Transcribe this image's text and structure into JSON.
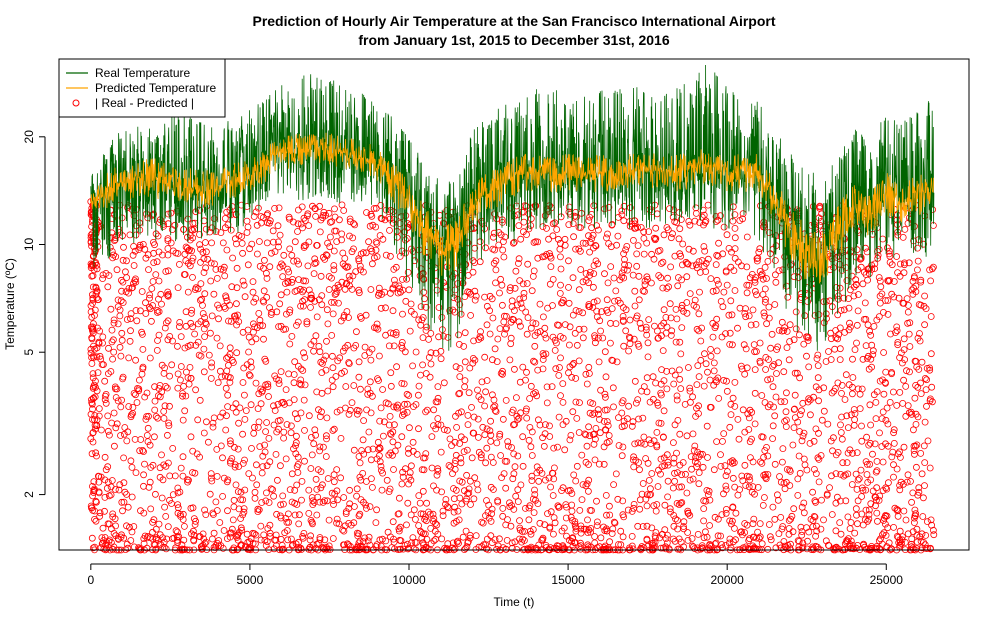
{
  "chart_data": {
    "type": "line",
    "title": "Prediction of Hourly Air Temperature at the San Francisco International Airport",
    "subtitle": "from January 1st, 2015 to December 31st, 2016",
    "xlabel": "Time (t)",
    "ylabel": "Temperature (ºC)",
    "xlim": [
      -1000,
      27600
    ],
    "ylim": [
      1.4,
      33
    ],
    "y_scale": "log",
    "x_ticks": [
      0,
      5000,
      10000,
      15000,
      20000,
      25000
    ],
    "x_tick_labels": [
      "0",
      "5000",
      "10000",
      "15000",
      "20000",
      "25000"
    ],
    "y_ticks": [
      2,
      5,
      10,
      20
    ],
    "y_tick_labels": [
      "2",
      "5",
      "10",
      "20"
    ],
    "grid": false,
    "legend_position": "top-left",
    "colors": {
      "real": "#006400",
      "predicted": "#FFA500",
      "residual": "#FF0000"
    },
    "series": [
      {
        "name": "Real Temperature",
        "style": "line",
        "x": [
          0,
          500,
          1000,
          1500,
          2000,
          2500,
          3000,
          3500,
          4000,
          4500,
          5000,
          5500,
          6000,
          6500,
          7000,
          7500,
          8000,
          8500,
          9000,
          9500,
          10000,
          10500,
          11000,
          11500,
          12000,
          12500,
          13000,
          13500,
          14000,
          14500,
          15000,
          15500,
          16000,
          16500,
          17000,
          17500,
          18000,
          18500,
          19000,
          19500,
          20000,
          20500,
          21000,
          21500,
          22000,
          22500,
          23000,
          23500,
          24000,
          24500,
          25000,
          25500,
          26000,
          26500
        ],
        "values": [
          13,
          14,
          15,
          15,
          15,
          14.5,
          14.5,
          14,
          14.5,
          15,
          15.5,
          17,
          18,
          18,
          18.5,
          18,
          18,
          17.5,
          17,
          15,
          13,
          11,
          9,
          10,
          13,
          14,
          15,
          16,
          16,
          15.5,
          16,
          15.5,
          16,
          15.5,
          16,
          16,
          16,
          16,
          16,
          16,
          16,
          16,
          16,
          13,
          11,
          9,
          9,
          11,
          13,
          12,
          14,
          13,
          14,
          14
        ],
        "min": [
          8,
          9,
          10,
          10,
          10,
          10,
          10,
          10,
          10,
          10,
          11,
          12,
          13,
          13,
          13,
          13,
          13,
          13,
          12,
          10,
          7,
          6,
          4,
          5,
          8,
          9,
          10,
          10,
          11,
          11,
          11,
          11,
          11,
          11,
          11,
          11,
          11,
          11,
          11,
          11,
          11,
          11,
          10,
          8,
          6,
          5,
          5,
          6,
          8,
          8,
          9,
          9,
          9,
          9
        ],
        "max": [
          16,
          19,
          21,
          22,
          21,
          23,
          24,
          23,
          22,
          23,
          24,
          26,
          28,
          29,
          31,
          30,
          28,
          27,
          26,
          23,
          20,
          17,
          15,
          17,
          21,
          24,
          25,
          26,
          28,
          27,
          27,
          26,
          27,
          27,
          28,
          27,
          28,
          28,
          30,
          33,
          28,
          27,
          25,
          21,
          18,
          16,
          16,
          18,
          21,
          20,
          23,
          22,
          24,
          27
        ]
      },
      {
        "name": "Predicted Temperature",
        "style": "line",
        "x": [
          0,
          500,
          1000,
          1500,
          2000,
          2500,
          3000,
          3500,
          4000,
          4500,
          5000,
          5500,
          6000,
          6500,
          7000,
          7500,
          8000,
          8500,
          9000,
          9500,
          10000,
          10500,
          11000,
          11500,
          12000,
          12500,
          13000,
          13500,
          14000,
          14500,
          15000,
          15500,
          16000,
          16500,
          17000,
          17500,
          18000,
          18500,
          19000,
          19500,
          20000,
          20500,
          21000,
          21500,
          22000,
          22500,
          23000,
          23500,
          24000,
          24500,
          25000,
          25500,
          26000,
          26500
        ],
        "values": [
          13,
          14,
          15,
          15.5,
          15.5,
          14.5,
          14.5,
          14,
          14.5,
          15,
          15.5,
          17,
          18,
          18.5,
          19,
          18.5,
          18,
          17.5,
          17,
          15,
          13,
          11,
          9.5,
          10,
          13,
          14,
          15,
          16,
          16,
          15.5,
          16,
          15.5,
          16,
          15.5,
          16,
          16,
          16,
          16,
          16.5,
          16.5,
          16,
          16,
          16,
          13,
          11,
          9,
          9,
          11,
          13,
          12,
          14,
          13,
          14,
          14
        ],
        "min": [
          12,
          12.5,
          13,
          13.5,
          13.5,
          13,
          13,
          12.5,
          13,
          13.5,
          14,
          15,
          16,
          16.5,
          17,
          16.5,
          16,
          15.5,
          15,
          13,
          11,
          9,
          8,
          8.5,
          11,
          12,
          13,
          14,
          14,
          14,
          14,
          14,
          14,
          14,
          14,
          14,
          14,
          14,
          14.5,
          14.5,
          14,
          14,
          14,
          11,
          9,
          7.5,
          7.5,
          9,
          11,
          10.5,
          12,
          11.5,
          12,
          12.5
        ],
        "max": [
          14,
          16,
          17,
          17.5,
          17.5,
          16.5,
          16.5,
          16,
          16.5,
          17,
          17.5,
          19,
          20,
          20.5,
          21,
          20.5,
          20,
          19.5,
          19,
          17,
          15,
          13,
          11,
          12,
          15,
          16,
          17,
          18,
          18,
          17.5,
          18,
          17.5,
          18,
          17.5,
          18,
          18,
          18,
          18,
          18.5,
          18.5,
          18,
          18,
          18,
          15,
          13,
          11,
          11,
          13,
          15,
          14,
          16,
          15,
          16,
          16
        ]
      },
      {
        "name": "| Real - Predicted |",
        "style": "points",
        "description_x_range": [
          0,
          26500
        ],
        "value_range": [
          1.4,
          13.5
        ]
      }
    ]
  }
}
